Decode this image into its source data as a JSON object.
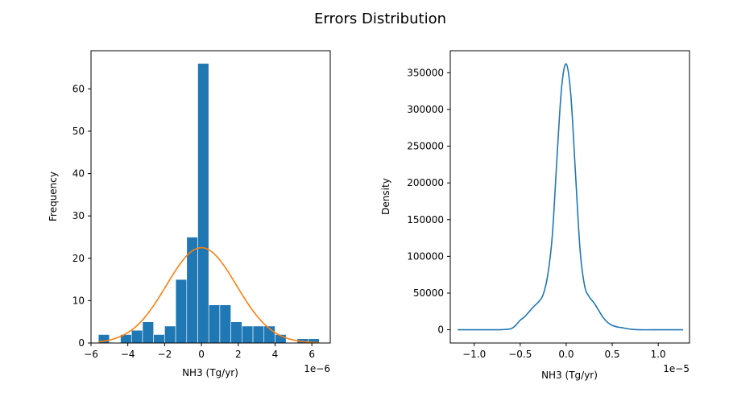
{
  "figure": {
    "title": "Errors Distribution"
  },
  "colors": {
    "bar": "#1f77b4",
    "fit": "#ff7f0e",
    "kde": "#1f77b4"
  },
  "chart_data": [
    {
      "type": "bar",
      "subtype": "histogram",
      "xlabel": "NH3 (Tg/yr)",
      "ylabel": "Frequency",
      "x_offset_label": "1e−6",
      "xlim": [
        -6.0,
        7.0
      ],
      "ylim": [
        0,
        69
      ],
      "xticks": [
        -6,
        -4,
        -2,
        0,
        2,
        4,
        6
      ],
      "xtick_labels": [
        "−6",
        "−4",
        "−2",
        "0",
        "2",
        "4",
        "6"
      ],
      "yticks": [
        0,
        10,
        20,
        30,
        40,
        50,
        60
      ],
      "bin_edges": [
        -5.6,
        -5.0,
        -4.4,
        -3.8,
        -3.2,
        -2.6,
        -2.0,
        -1.4,
        -0.8,
        -0.2,
        0.4,
        1.0,
        1.6,
        2.2,
        2.8,
        3.4,
        4.0,
        4.6,
        5.2,
        5.8,
        6.4
      ],
      "values": [
        2,
        0,
        2,
        3,
        5,
        2,
        4,
        15,
        25,
        66,
        9,
        9,
        5,
        4,
        4,
        4,
        2,
        0,
        1,
        1
      ],
      "series": [
        {
          "type": "line",
          "distribution": "normal",
          "mean": 0.0,
          "sd": 1.9,
          "peak": 22.5,
          "x_range": [
            -5.6,
            6.4
          ]
        }
      ]
    },
    {
      "type": "line",
      "subtype": "density",
      "xlabel": "NH3 (Tg/yr)",
      "ylabel": "Density",
      "x_offset_label": "1e−5",
      "xlim": [
        -1.26,
        1.34
      ],
      "ylim": [
        -18000,
        380000
      ],
      "xticks": [
        -1.0,
        -0.5,
        0.0,
        0.5,
        1.0
      ],
      "xtick_labels": [
        "−1.0",
        "−0.5",
        "0.0",
        "0.5",
        "1.0"
      ],
      "yticks": [
        0,
        50000,
        100000,
        150000,
        200000,
        250000,
        300000,
        350000
      ],
      "ytick_labels": [
        "0",
        "50000",
        "100000",
        "150000",
        "200000",
        "250000",
        "300000",
        "350000"
      ],
      "x": [
        -1.18,
        -0.9,
        -0.7,
        -0.6,
        -0.55,
        -0.5,
        -0.45,
        -0.4,
        -0.35,
        -0.3,
        -0.25,
        -0.2,
        -0.15,
        -0.1,
        -0.05,
        0.0,
        0.05,
        0.1,
        0.15,
        0.2,
        0.25,
        0.3,
        0.35,
        0.4,
        0.45,
        0.5,
        0.55,
        0.6,
        0.7,
        0.8,
        1.0,
        1.27
      ],
      "y": [
        0,
        0,
        200,
        1500,
        6000,
        13000,
        18000,
        25000,
        32000,
        38000,
        48000,
        75000,
        130000,
        235000,
        330000,
        362000,
        320000,
        215000,
        110000,
        60000,
        45000,
        37000,
        27000,
        17000,
        10000,
        6000,
        4000,
        3000,
        800,
        0,
        0,
        0
      ]
    }
  ]
}
